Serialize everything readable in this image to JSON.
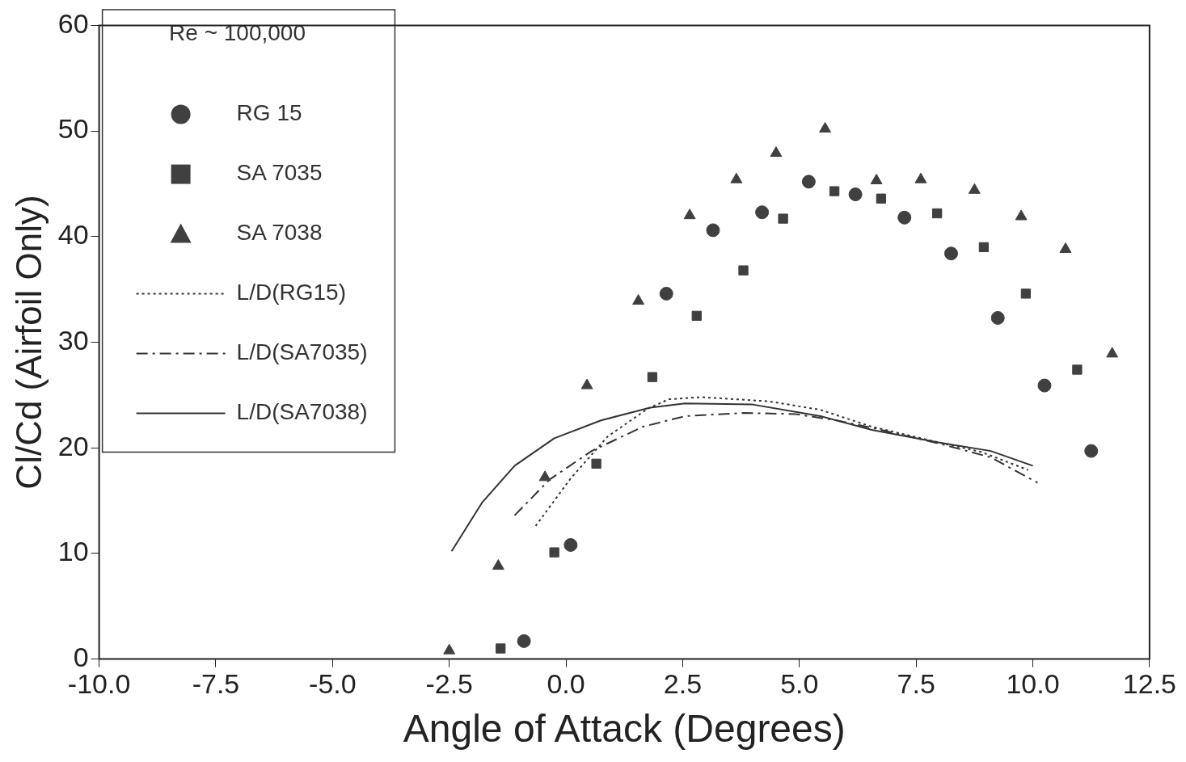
{
  "chart_data": {
    "type": "scatter",
    "xlabel": "Angle of Attack (Degrees)",
    "ylabel": "Cl/Cd (Airfoil Only)",
    "legend_title": "Re ~ 100,000",
    "legend": "top left",
    "grid": false,
    "xlim": [
      -10,
      12.5
    ],
    "xticks": [
      {
        "value": -10,
        "label": "-10.0"
      },
      {
        "value": -7.5,
        "label": "-7.5"
      },
      {
        "value": -5,
        "label": "-5.0"
      },
      {
        "value": -2.5,
        "label": "-2.5"
      },
      {
        "value": 0,
        "label": "0.0"
      },
      {
        "value": 2.5,
        "label": "2.5"
      },
      {
        "value": 5,
        "label": "5.0"
      },
      {
        "value": 7.5,
        "label": "7.5"
      },
      {
        "value": 10,
        "label": "10.0"
      },
      {
        "value": 12.5,
        "label": "12.5"
      }
    ],
    "ylim": [
      0,
      60
    ],
    "yticks": [
      0,
      10,
      20,
      30,
      40,
      50,
      60
    ],
    "series": [
      {
        "name": "RG 15",
        "marker": "circle",
        "color": "#404040",
        "x": [
          -0.9,
          0.1,
          2.15,
          3.15,
          4.2,
          5.2,
          6.2,
          7.25,
          8.25,
          9.25,
          10.25,
          11.25
        ],
        "values": [
          1.7,
          10.8,
          34.6,
          40.6,
          42.3,
          45.2,
          44.0,
          41.8,
          38.4,
          32.3,
          25.9,
          19.7
        ]
      },
      {
        "name": "SA 7035",
        "marker": "square",
        "color": "#404040",
        "x": [
          -1.4,
          -0.25,
          0.65,
          1.85,
          2.8,
          3.8,
          4.65,
          5.75,
          6.75,
          7.95,
          8.95,
          9.85,
          10.95
        ],
        "values": [
          1.0,
          10.1,
          18.5,
          26.7,
          32.5,
          36.8,
          41.7,
          44.3,
          43.6,
          42.2,
          39.0,
          34.6,
          27.4
        ]
      },
      {
        "name": "SA 7038",
        "marker": "triangle",
        "color": "#404040",
        "x": [
          -2.5,
          -1.45,
          -0.45,
          0.45,
          1.55,
          2.65,
          3.65,
          4.5,
          5.55,
          6.65,
          7.6,
          8.75,
          9.75,
          10.7,
          11.7
        ],
        "values": [
          0.8,
          8.8,
          17.2,
          25.9,
          33.9,
          42.0,
          45.4,
          47.9,
          50.2,
          45.3,
          45.4,
          44.4,
          41.9,
          38.8,
          28.9
        ]
      },
      {
        "name": "L/D(RG15)",
        "type": "line",
        "line_style": "dotted",
        "color": "#333333",
        "x": [
          -0.65,
          0.1,
          0.9,
          1.75,
          2.2,
          2.9,
          4.35,
          5.45,
          6.55,
          8.0,
          8.9,
          9.9
        ],
        "values": [
          12.6,
          17.1,
          21.1,
          23.7,
          24.6,
          24.8,
          24.4,
          23.6,
          22.0,
          20.5,
          19.6,
          17.9
        ]
      },
      {
        "name": "L/D(SA7035)",
        "type": "line",
        "line_style": "dashed",
        "color": "#333333",
        "x": [
          -1.1,
          -0.35,
          0.55,
          1.65,
          2.55,
          3.8,
          4.9,
          5.8,
          6.55,
          8.0,
          9.1,
          10.1
        ],
        "values": [
          13.6,
          17.0,
          19.7,
          22.0,
          23.0,
          23.3,
          23.2,
          22.6,
          21.9,
          20.4,
          19.1,
          16.7
        ]
      },
      {
        "name": "L/D(SA7038)",
        "type": "line",
        "line_style": "solid",
        "color": "#333333",
        "x": [
          -2.45,
          -1.8,
          -1.1,
          -0.25,
          0.75,
          1.8,
          2.55,
          4.0,
          5.45,
          6.55,
          8.0,
          9.1,
          10.0
        ],
        "values": [
          10.2,
          14.8,
          18.3,
          20.9,
          22.6,
          23.8,
          24.2,
          24.1,
          23.0,
          21.7,
          20.5,
          19.7,
          18.3
        ]
      }
    ]
  }
}
